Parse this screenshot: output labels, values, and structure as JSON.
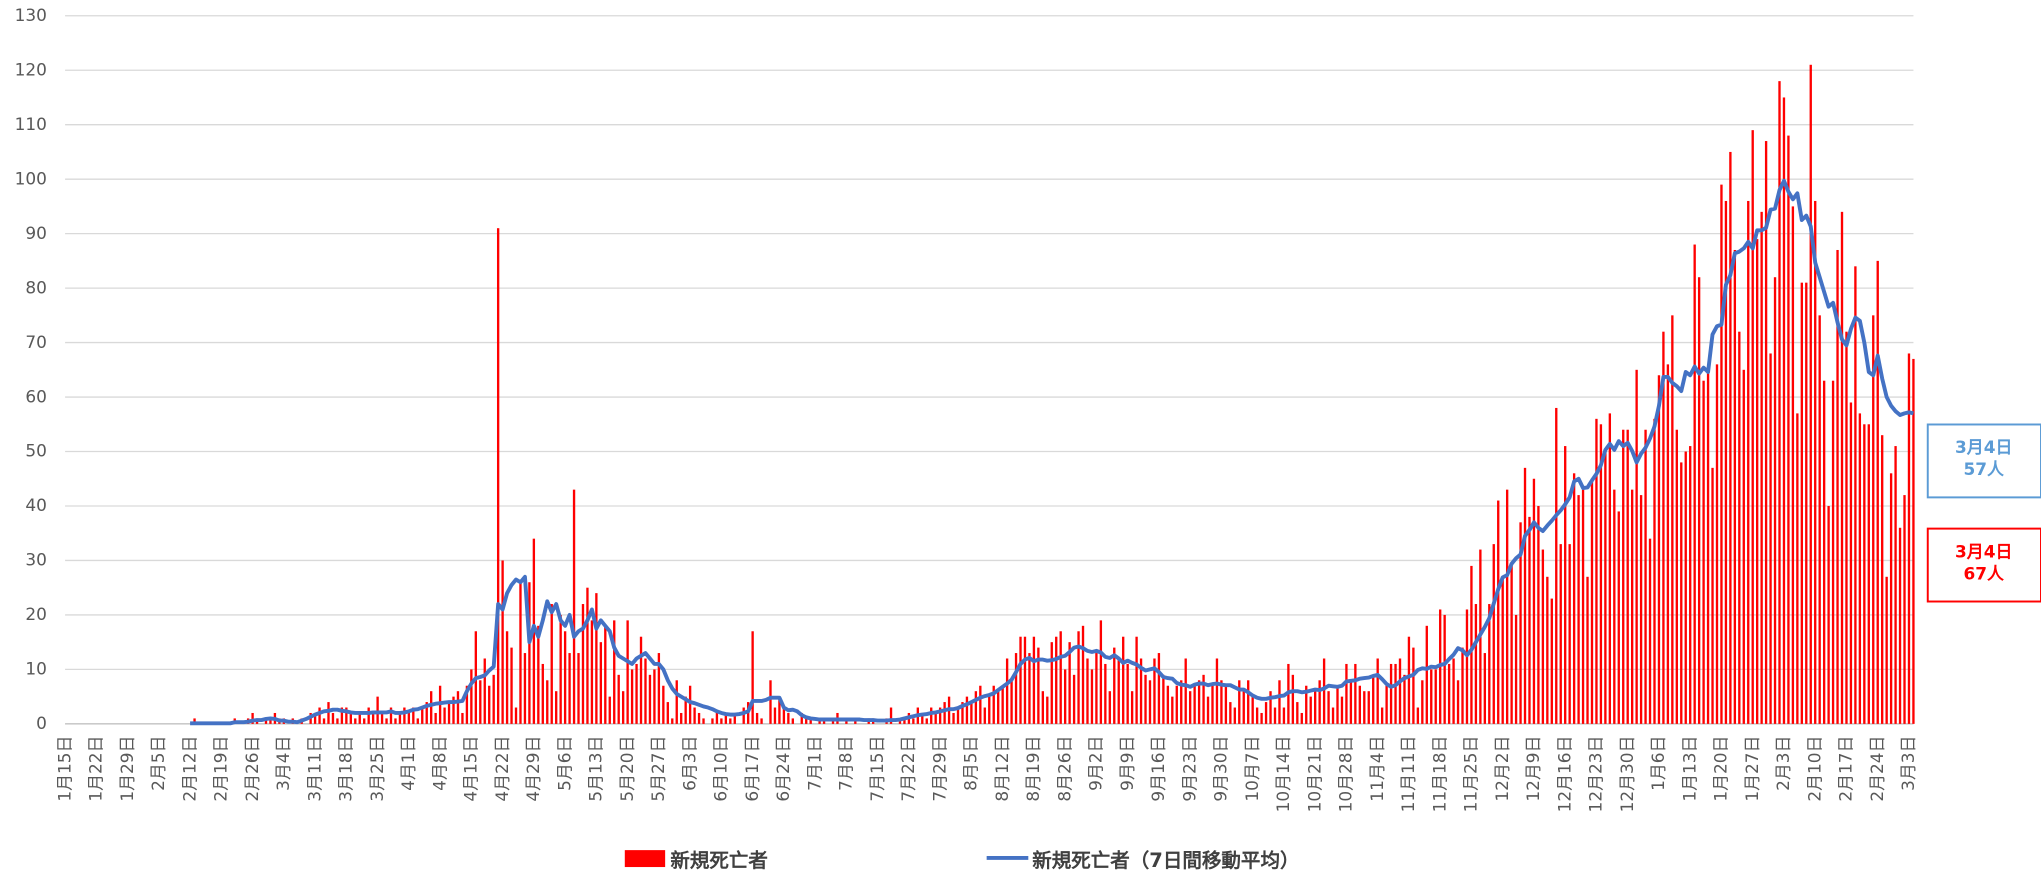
{
  "chart_data": {
    "type": "bar",
    "categories": [
      "1月15日",
      null,
      null,
      null,
      null,
      null,
      null,
      "1月22日",
      null,
      null,
      null,
      null,
      null,
      null,
      "1月29日",
      null,
      null,
      null,
      null,
      null,
      null,
      "2月5日",
      null,
      null,
      null,
      null,
      null,
      null,
      "2月12日",
      null,
      null,
      null,
      null,
      null,
      null,
      "2月19日",
      null,
      null,
      null,
      null,
      null,
      null,
      "2月26日",
      null,
      null,
      null,
      null,
      null,
      null,
      "3月4日",
      null,
      null,
      null,
      null,
      null,
      null,
      "3月11日",
      null,
      null,
      null,
      null,
      null,
      null,
      "3月18日",
      null,
      null,
      null,
      null,
      null,
      null,
      "3月25日",
      null,
      null,
      null,
      null,
      null,
      null,
      "4月1日",
      null,
      null,
      null,
      null,
      null,
      null,
      "4月8日",
      null,
      null,
      null,
      null,
      null,
      null,
      "4月15日",
      null,
      null,
      null,
      null,
      null,
      null,
      "4月22日",
      null,
      null,
      null,
      null,
      null,
      null,
      "4月29日",
      null,
      null,
      null,
      null,
      null,
      null,
      "5月6日",
      null,
      null,
      null,
      null,
      null,
      null,
      "5月13日",
      null,
      null,
      null,
      null,
      null,
      null,
      "5月20日",
      null,
      null,
      null,
      null,
      null,
      null,
      "5月27日",
      null,
      null,
      null,
      null,
      null,
      null,
      "6月3日",
      null,
      null,
      null,
      null,
      null,
      null,
      "6月10日",
      null,
      null,
      null,
      null,
      null,
      null,
      "6月17日",
      null,
      null,
      null,
      null,
      null,
      null,
      "6月24日",
      null,
      null,
      null,
      null,
      null,
      null,
      "7月1日",
      null,
      null,
      null,
      null,
      null,
      null,
      "7月8日",
      null,
      null,
      null,
      null,
      null,
      null,
      "7月15日",
      null,
      null,
      null,
      null,
      null,
      null,
      "7月22日",
      null,
      null,
      null,
      null,
      null,
      null,
      "7月29日",
      null,
      null,
      null,
      null,
      null,
      null,
      "8月5日",
      null,
      null,
      null,
      null,
      null,
      null,
      "8月12日",
      null,
      null,
      null,
      null,
      null,
      null,
      "8月19日",
      null,
      null,
      null,
      null,
      null,
      null,
      "8月26日",
      null,
      null,
      null,
      null,
      null,
      null,
      "9月2日",
      null,
      null,
      null,
      null,
      null,
      null,
      "9月9日",
      null,
      null,
      null,
      null,
      null,
      null,
      "9月16日",
      null,
      null,
      null,
      null,
      null,
      null,
      "9月23日",
      null,
      null,
      null,
      null,
      null,
      null,
      "9月30日",
      null,
      null,
      null,
      null,
      null,
      null,
      "10月7日",
      null,
      null,
      null,
      null,
      null,
      null,
      "10月14日",
      null,
      null,
      null,
      null,
      null,
      null,
      "10月21日",
      null,
      null,
      null,
      null,
      null,
      null,
      "10月28日",
      null,
      null,
      null,
      null,
      null,
      null,
      "11月4日",
      null,
      null,
      null,
      null,
      null,
      null,
      "11月11日",
      null,
      null,
      null,
      null,
      null,
      null,
      "11月18日",
      null,
      null,
      null,
      null,
      null,
      null,
      "11月25日",
      null,
      null,
      null,
      null,
      null,
      null,
      "12月2日",
      null,
      null,
      null,
      null,
      null,
      null,
      "12月9日",
      null,
      null,
      null,
      null,
      null,
      null,
      "12月16日",
      null,
      null,
      null,
      null,
      null,
      null,
      "12月23日",
      null,
      null,
      null,
      null,
      null,
      null,
      "12月30日",
      null,
      null,
      null,
      null,
      null,
      null,
      "1月6日",
      null,
      null,
      null,
      null,
      null,
      null,
      "1月13日",
      null,
      null,
      null,
      null,
      null,
      null,
      "1月20日",
      null,
      null,
      null,
      null,
      null,
      null,
      "1月27日",
      null,
      null,
      null,
      null,
      null,
      null,
      "2月3日",
      null,
      null,
      null,
      null,
      null,
      null,
      "2月10日",
      null,
      null,
      null,
      null,
      null,
      null,
      "2月17日",
      null,
      null,
      null,
      null,
      null,
      null,
      "2月24日",
      null,
      null,
      null,
      null,
      null,
      null,
      "3月3日",
      null
    ],
    "series": [
      {
        "name": "新規死亡者",
        "type": "bar",
        "color": "#ff0000",
        "values": [
          0,
          0,
          0,
          0,
          0,
          0,
          0,
          0,
          0,
          0,
          0,
          0,
          0,
          0,
          0,
          0,
          0,
          0,
          0,
          0,
          0,
          0,
          0,
          0,
          0,
          0,
          0,
          0,
          0,
          1,
          0,
          0,
          0,
          0,
          0,
          0,
          0,
          0,
          1,
          0,
          0,
          1,
          2,
          1,
          0,
          1,
          1,
          2,
          1,
          1,
          0,
          1,
          0,
          1,
          0,
          2,
          2,
          3,
          1,
          4,
          2,
          1,
          3,
          3,
          2,
          1,
          2,
          1,
          3,
          2,
          5,
          2,
          1,
          3,
          1,
          2,
          3,
          2,
          3,
          1,
          3,
          4,
          6,
          2,
          7,
          3,
          4,
          5,
          6,
          2,
          7,
          10,
          17,
          8,
          12,
          7,
          9,
          91,
          30,
          17,
          14,
          3,
          26,
          13,
          26,
          34,
          18,
          11,
          8,
          22,
          6,
          20,
          17,
          13,
          43,
          13,
          22,
          25,
          19,
          24,
          15,
          18,
          5,
          19,
          9,
          6,
          19,
          10,
          11,
          16,
          12,
          9,
          10,
          13,
          7,
          4,
          1,
          8,
          2,
          5,
          7,
          3,
          2,
          1,
          0,
          1,
          2,
          1,
          2,
          1,
          2,
          0,
          3,
          4,
          17,
          2,
          1,
          0,
          8,
          3,
          5,
          3,
          2,
          1,
          0,
          2,
          1,
          1,
          0,
          1,
          1,
          0,
          1,
          2,
          0,
          1,
          0,
          1,
          0,
          0,
          1,
          1,
          0,
          0,
          1,
          3,
          0,
          1,
          1,
          2,
          1,
          3,
          2,
          1,
          3,
          2,
          3,
          4,
          5,
          2,
          3,
          4,
          5,
          4,
          6,
          7,
          3,
          5,
          7,
          6,
          7,
          12,
          8,
          13,
          16,
          16,
          13,
          16,
          14,
          6,
          5,
          15,
          16,
          17,
          10,
          15,
          9,
          17,
          18,
          12,
          10,
          13,
          19,
          11,
          6,
          14,
          12,
          16,
          11,
          6,
          16,
          12,
          9,
          8,
          12,
          13,
          9,
          7,
          5,
          7,
          8,
          12,
          6,
          7,
          8,
          9,
          5,
          7,
          12,
          8,
          7,
          4,
          3,
          8,
          6,
          8,
          5,
          3,
          2,
          4,
          6,
          3,
          8,
          3,
          11,
          9,
          4,
          2,
          7,
          5,
          6,
          8,
          12,
          6,
          3,
          7,
          5,
          11,
          8,
          11,
          7,
          6,
          6,
          9,
          12,
          3,
          7,
          11,
          11,
          12,
          9,
          16,
          14,
          3,
          8,
          18,
          10,
          10,
          21,
          20,
          11,
          12,
          8,
          14,
          21,
          29,
          22,
          32,
          13,
          22,
          33,
          41,
          27,
          43,
          29,
          20,
          37,
          47,
          38,
          45,
          40,
          32,
          27,
          23,
          58,
          33,
          51,
          33,
          46,
          42,
          43,
          27,
          45,
          56,
          55,
          50,
          57,
          43,
          39,
          54,
          54,
          43,
          65,
          42,
          54,
          34,
          56,
          64,
          72,
          66,
          75,
          54,
          48,
          50,
          51,
          88,
          82,
          63,
          65,
          47,
          66,
          99,
          96,
          105,
          87,
          72,
          65,
          96,
          109,
          89,
          94,
          107,
          68,
          82,
          118,
          115,
          108,
          95,
          57,
          81,
          81,
          121,
          96,
          75,
          63,
          40,
          63,
          87,
          94,
          72,
          59,
          84,
          57,
          55,
          55,
          75,
          85,
          53,
          27,
          46,
          51,
          36,
          42,
          68,
          67
        ]
      },
      {
        "name": "新規死亡者（7日間移動平均）",
        "type": "line",
        "color": "#4472c4",
        "values": [
          null,
          null,
          null,
          null,
          null,
          null,
          null,
          null,
          null,
          null,
          null,
          null,
          null,
          null,
          null,
          null,
          null,
          null,
          null,
          null,
          null,
          null,
          null,
          null,
          null,
          null,
          null,
          null,
          0.1,
          0.1,
          0.1,
          0.1,
          0.1,
          0.1,
          0.1,
          0.1,
          0.1,
          0.1,
          0.3,
          0.3,
          0.3,
          0.4,
          0.6,
          0.7,
          0.7,
          0.9,
          1,
          0.9,
          0.6,
          0.6,
          0.4,
          0.4,
          0.3,
          0.6,
          0.9,
          1.3,
          1.7,
          2,
          2.3,
          2.4,
          2.6,
          2.6,
          2.4,
          2.3,
          2.1,
          2,
          2,
          2,
          2,
          2.1,
          2.1,
          2.1,
          2.1,
          2.3,
          2,
          2,
          2.1,
          2.3,
          2.6,
          2.7,
          3,
          3.3,
          3.5,
          3.7,
          3.8,
          3.9,
          4,
          4,
          4.1,
          4.2,
          6,
          7.4,
          8.4,
          8.6,
          8.9,
          9.8,
          10.5,
          22,
          21,
          24,
          25.5,
          26.5,
          26,
          27,
          15,
          18,
          16,
          19,
          22.5,
          20.5,
          22,
          19,
          18,
          20,
          16,
          17,
          17.5,
          19,
          21,
          17.5,
          19,
          18,
          17,
          14,
          12.5,
          12,
          11.5,
          11,
          12,
          12.5,
          13,
          12,
          11,
          11,
          10,
          8,
          6.5,
          5.5,
          5,
          4.5,
          4,
          3.8,
          3.5,
          3.2,
          3,
          2.7,
          2.3,
          2,
          1.8,
          1.7,
          1.7,
          1.8,
          2,
          2.3,
          4.2,
          4.2,
          4.2,
          4.4,
          4.8,
          4.8,
          4.8,
          3,
          2.5,
          2.6,
          2.3,
          1.6,
          1.2,
          1,
          0.9,
          0.8,
          0.8,
          0.8,
          0.8,
          0.8,
          0.8,
          0.8,
          0.8,
          0.8,
          0.8,
          0.7,
          0.7,
          0.7,
          0.6,
          0.6,
          0.6,
          0.7,
          0.7,
          0.8,
          1,
          1.2,
          1.4,
          1.6,
          1.7,
          1.8,
          2,
          2.1,
          2.3,
          2.5,
          2.7,
          2.7,
          2.9,
          3.3,
          3.6,
          4,
          4.4,
          4.8,
          5.1,
          5.3,
          5.6,
          6.2,
          6.8,
          7.4,
          8.1,
          9.5,
          11,
          11.8,
          12.1,
          11.5,
          11.8,
          11.8,
          11.6,
          11.7,
          11.9,
          12.3,
          12.5,
          13.2,
          14,
          14.2,
          13.9,
          13.4,
          13.2,
          13.4,
          13.1,
          12.3,
          12.1,
          12.6,
          12,
          11.2,
          11.6,
          11.2,
          10.9,
          10.3,
          9.8,
          10,
          10.2,
          9.5,
          8.6,
          8.4,
          8.3,
          7.5,
          7.2,
          7.1,
          6.8,
          7.2,
          7.4,
          7.4,
          7.1,
          7.3,
          7.4,
          7.2,
          7.1,
          7.1,
          6.7,
          6.3,
          6.3,
          5.8,
          5.2,
          4.8,
          4.6,
          4.6,
          4.8,
          4.9,
          5.1,
          5.2,
          5.8,
          6,
          6,
          5.8,
          5.9,
          6.1,
          6.3,
          6.2,
          6.5,
          7,
          6.9,
          6.8,
          7,
          7.8,
          7.9,
          8,
          8.3,
          8.4,
          8.5,
          8.8,
          9,
          8.2,
          7.3,
          6.8,
          7.1,
          7.8,
          8.4,
          8.7,
          9,
          9.9,
          10.2,
          10.1,
          10.5,
          10.4,
          10.8,
          11,
          11.9,
          12.7,
          13.9,
          13.5,
          12.6,
          13.6,
          15,
          16.4,
          17.8,
          19.4,
          22.1,
          24.7,
          26.9,
          27.3,
          29.4,
          30.4,
          31.1,
          34.5,
          35.6,
          37,
          36,
          35.4,
          36.4,
          37.3,
          38.3,
          39.2,
          40.3,
          41.6,
          44.5,
          45,
          43.3,
          43.4,
          44.7,
          45.9,
          47.5,
          50.3,
          51.4,
          50.3,
          51.9,
          51,
          51.6,
          50.1,
          48,
          49.6,
          50.7,
          52.4,
          54.6,
          58.4,
          63.7,
          63.7,
          62.6,
          62,
          61.1,
          64.6,
          64,
          65.6,
          64.3,
          65.4,
          64.6,
          71.5,
          73,
          73.3,
          80.6,
          82.4,
          86.4,
          86.7,
          87.3,
          88.5,
          87.3,
          90.6,
          90.6,
          91.1,
          94.4,
          94.6,
          98,
          99.7,
          97.7,
          96.3,
          97.4,
          92.5,
          93.3,
          91.3,
          84.7,
          82,
          79.3,
          76.6,
          77.3,
          73.7,
          70.6,
          69.5,
          72.5,
          74.6,
          74,
          70,
          64.6,
          64,
          67.6,
          63.4,
          60,
          58.4,
          57.4,
          56.7,
          57,
          57.2,
          57
        ]
      }
    ],
    "ylim": [
      0,
      130
    ],
    "yticks": [
      0,
      10,
      20,
      30,
      40,
      50,
      60,
      70,
      80,
      90,
      100,
      110,
      120,
      130
    ],
    "grid": true,
    "annotations": [
      {
        "lines": [
          "3月4日",
          "57人"
        ],
        "color": "#5b9bd5"
      },
      {
        "lines": [
          "3月4日",
          "67人"
        ],
        "color": "#ff0000"
      }
    ]
  }
}
